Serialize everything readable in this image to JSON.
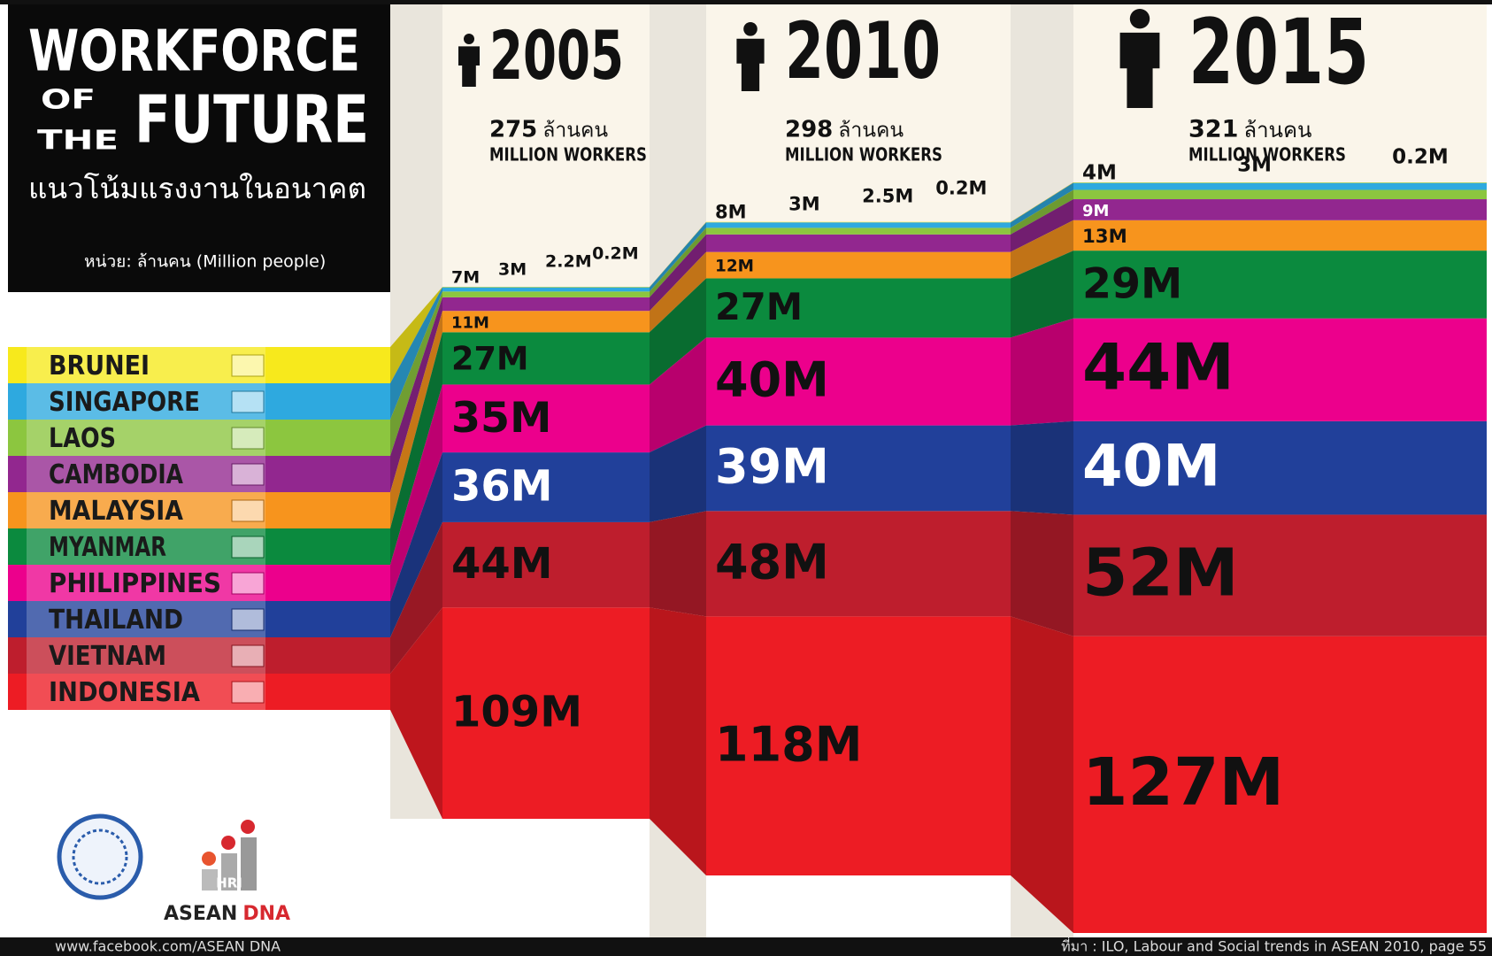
{
  "chart_data": {
    "type": "stacked_bar",
    "title": "WORKFORCE",
    "title_of": "OF",
    "title_the": "THE",
    "title_future": "FUTURE",
    "subtitle": "แนวโน้มแรงงานในอนาคต",
    "unit_note": "หน่วย: ล้านคน (Million people)",
    "categories": [
      "2005",
      "2010",
      "2015"
    ],
    "totals": [
      275,
      298,
      321
    ],
    "total_unit": "ล้านคน",
    "total_label": "MILLION WORKERS",
    "series": [
      {
        "name": "BRUNEI",
        "color": "#f7e91c",
        "label_color": "#111111",
        "values": [
          0.2,
          0.2,
          0.2
        ],
        "value_labels": [
          "0.2M",
          "0.2M",
          "0.2M"
        ]
      },
      {
        "name": "SINGAPORE",
        "color": "#2ea9df",
        "label_color": "#111111",
        "values": [
          2.2,
          2.5,
          3
        ],
        "value_labels": [
          "2.2M",
          "2.5M",
          "3M"
        ]
      },
      {
        "name": "LAOS",
        "color": "#8cc63f",
        "label_color": "#111111",
        "values": [
          3,
          3,
          4
        ],
        "value_labels": [
          "3M",
          "3M",
          "4M"
        ]
      },
      {
        "name": "CAMBODIA",
        "color": "#92278f",
        "label_color": "#ffffff",
        "values": [
          7,
          8,
          9
        ],
        "value_labels": [
          "7M",
          "8M",
          "9M"
        ]
      },
      {
        "name": "MALAYSIA",
        "color": "#f7941d",
        "label_color": "#111111",
        "values": [
          11,
          12,
          13
        ],
        "value_labels": [
          "11M",
          "12M",
          "13M"
        ]
      },
      {
        "name": "MYANMAR",
        "color": "#0b8a3e",
        "label_color": "#111111",
        "values": [
          27,
          27,
          29
        ],
        "value_labels": [
          "27M",
          "27M",
          "29M"
        ]
      },
      {
        "name": "PHILIPPINES",
        "color": "#ec008c",
        "label_color": "#111111",
        "values": [
          35,
          40,
          44
        ],
        "value_labels": [
          "35M",
          "40M",
          "44M"
        ]
      },
      {
        "name": "THAILAND",
        "color": "#21409a",
        "label_color": "#ffffff",
        "values": [
          36,
          39,
          40
        ],
        "value_labels": [
          "36M",
          "39M",
          "40M"
        ]
      },
      {
        "name": "VIETNAM",
        "color": "#be1e2d",
        "label_color": "#111111",
        "values": [
          44,
          48,
          52
        ],
        "value_labels": [
          "44M",
          "48M",
          "52M"
        ]
      },
      {
        "name": "INDONESIA",
        "color": "#ed1c24",
        "label_color": "#111111",
        "values": [
          109,
          118,
          127
        ],
        "value_labels": [
          "109M",
          "118M",
          "127M"
        ]
      }
    ],
    "logos": {
      "hri": "HRI",
      "brand": "ASEAN",
      "brand_accent": "DNA"
    },
    "footer": {
      "url": "www.facebook.com/ASEAN DNA",
      "source": "ที่มา : ILO, Labour and Social trends in ASEAN 2010, page 55"
    }
  }
}
